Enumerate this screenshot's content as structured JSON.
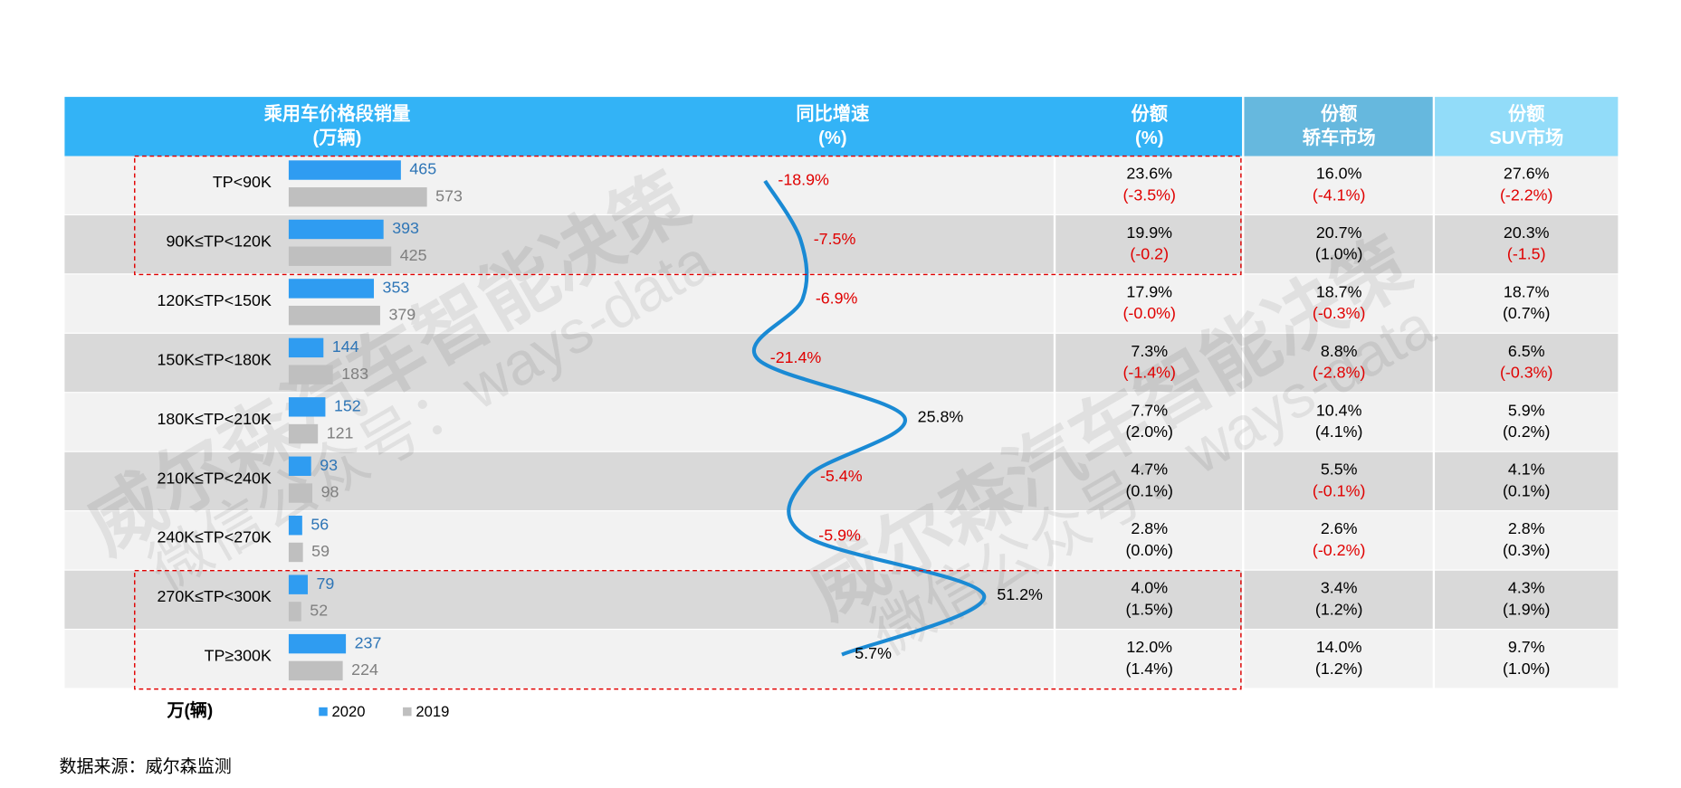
{
  "chart_data": {
    "type": "bar",
    "categories": [
      "TP<90K",
      "90K≤TP<120K",
      "120K≤TP<150K",
      "150K≤TP<180K",
      "180K≤TP<210K",
      "210K≤TP<240K",
      "240K≤TP<270K",
      "270K≤TP<300K",
      "TP≥300K"
    ],
    "series": [
      {
        "name": "2020",
        "color": "#2f9cf1",
        "label_color": "#2e75b6",
        "values": [
          465,
          393,
          353,
          144,
          152,
          93,
          56,
          79,
          237
        ]
      },
      {
        "name": "2019",
        "color": "#bfbfbf",
        "label_color": "#7f7f7f",
        "values": [
          573,
          425,
          379,
          183,
          121,
          98,
          59,
          52,
          224
        ]
      }
    ],
    "growth": {
      "color": "#1a8ad4",
      "values": [
        -18.9,
        -7.5,
        -6.9,
        -21.4,
        25.8,
        -5.4,
        -5.9,
        51.2,
        5.7
      ],
      "value_labels": [
        "-18.9%",
        "-7.5%",
        "-6.9%",
        "-21.4%",
        "25.8%",
        "-5.4%",
        "-5.9%",
        "51.2%",
        "5.7%"
      ]
    },
    "headers": [
      [
        "乘用车价格段销量",
        "(万辆)"
      ],
      [
        "同比增速",
        "(%)"
      ],
      [
        "份额",
        "(%)"
      ],
      [
        "份额",
        "轿车市场"
      ],
      [
        "份额",
        "SUV市场"
      ]
    ],
    "header_colors": [
      "#33b3f6",
      "#66b8de",
      "#92dcf9"
    ],
    "share_columns": [
      [
        [
          "23.6%",
          "(-3.5%)"
        ],
        [
          "19.9%",
          "(-0.2)"
        ],
        [
          "17.9%",
          "(-0.0%)"
        ],
        [
          "7.3%",
          "(-1.4%)"
        ],
        [
          "7.7%",
          "(2.0%)"
        ],
        [
          "4.7%",
          "(0.1%)"
        ],
        [
          "2.8%",
          "(0.0%)"
        ],
        [
          "4.0%",
          "(1.5%)"
        ],
        [
          "12.0%",
          "(1.4%)"
        ]
      ],
      [
        [
          "16.0%",
          "(-4.1%)"
        ],
        [
          "20.7%",
          "(1.0%)"
        ],
        [
          "18.7%",
          "(-0.3%)"
        ],
        [
          "8.8%",
          "(-2.8%)"
        ],
        [
          "10.4%",
          "(4.1%)"
        ],
        [
          "5.5%",
          "(-0.1%)"
        ],
        [
          "2.6%",
          "(-0.2%)"
        ],
        [
          "3.4%",
          "(1.2%)"
        ],
        [
          "14.0%",
          "(1.2%)"
        ]
      ],
      [
        [
          "27.6%",
          "(-2.2%)"
        ],
        [
          "20.3%",
          "(-1.5)"
        ],
        [
          "18.7%",
          "(0.7%)"
        ],
        [
          "6.5%",
          "(-0.3%)"
        ],
        [
          "5.9%",
          "(0.2%)"
        ],
        [
          "4.1%",
          "(0.1%)"
        ],
        [
          "2.8%",
          "(0.3%)"
        ],
        [
          "4.3%",
          "(1.9%)"
        ],
        [
          "9.7%",
          "(1.0%)"
        ]
      ]
    ],
    "unit_label": "万(辆)",
    "source": "数据来源：威尔森监测",
    "watermark": [
      "威尔森汽车智能决策",
      "微信公众号：ways-data"
    ]
  }
}
